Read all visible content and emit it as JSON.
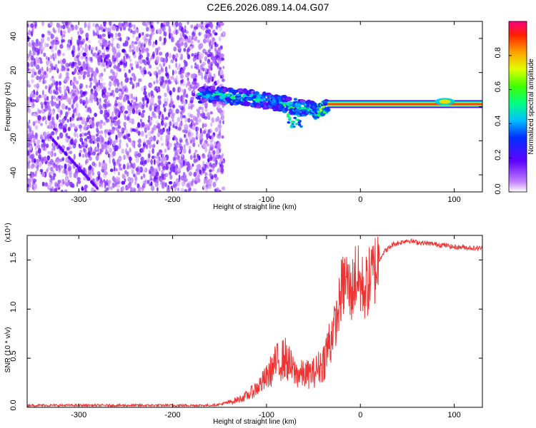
{
  "title": "C2E6.2026.089.14.04.G07",
  "chart_data": [
    {
      "type": "heatmap",
      "title": "C2E6.2026.089.14.04.G07",
      "xlabel": "Height of straight line (km)",
      "ylabel": "Frequency (Hz)",
      "xlim": [
        -355,
        130
      ],
      "ylim": [
        -50,
        50
      ],
      "xticks": [
        -300,
        -200,
        -100,
        0,
        100
      ],
      "xtick_labels": [
        "-300",
        "-200",
        "-100",
        "0",
        "100"
      ],
      "yticks": [
        -40,
        -20,
        0,
        20,
        40
      ],
      "ytick_labels": [
        "-40",
        "-20",
        "0",
        "20",
        "40"
      ],
      "colorbar": {
        "label": "Normalized spectral amplitude",
        "range": [
          0,
          1
        ],
        "ticks": [
          0.0,
          0.2,
          0.4,
          0.6,
          0.8
        ],
        "tick_labels": [
          "0.0",
          "0.2",
          "0.4",
          "0.6",
          "0.8"
        ],
        "colormap": "rainbow"
      },
      "noise_region_x": [
        -355,
        -150
      ],
      "ridge": [
        {
          "x": -165,
          "y": 7,
          "amp": 0.45
        },
        {
          "x": -140,
          "y": 6.5,
          "amp": 0.55
        },
        {
          "x": -120,
          "y": 5,
          "amp": 0.5
        },
        {
          "x": -100,
          "y": 3.5,
          "amp": 0.45
        },
        {
          "x": -85,
          "y": 2,
          "amp": 0.5
        },
        {
          "x": -70,
          "y": 0,
          "amp": 0.55
        },
        {
          "x": -55,
          "y": -1.5,
          "amp": 0.5
        },
        {
          "x": -45,
          "y": -2.5,
          "amp": 0.6
        },
        {
          "x": -35,
          "y": 0,
          "amp": 0.7
        },
        {
          "x": -25,
          "y": 1.5,
          "amp": 0.85
        },
        {
          "x": 0,
          "y": 1.5,
          "amp": 0.9
        },
        {
          "x": 60,
          "y": 1.5,
          "amp": 0.95
        },
        {
          "x": 130,
          "y": 1.5,
          "amp": 0.95
        }
      ]
    },
    {
      "type": "line",
      "xlabel": "Height of straight line (km)",
      "ylabel": "SNR (10 * v/v)",
      "y_multiplier": "(x10⁴)",
      "xlim": [
        -355,
        130
      ],
      "ylim": [
        0,
        1.75
      ],
      "xticks": [
        -300,
        -200,
        -100,
        0,
        100
      ],
      "xtick_labels": [
        "-300",
        "-200",
        "-100",
        "0",
        "100"
      ],
      "yticks": [
        0.0,
        0.5,
        1.0,
        1.5
      ],
      "ytick_labels": [
        "0.0",
        "0.5",
        "1.0",
        "1.5"
      ],
      "color": "#ee3333",
      "series": [
        {
          "name": "SNR",
          "x": [
            -355,
            -300,
            -250,
            -200,
            -160,
            -150,
            -140,
            -130,
            -120,
            -110,
            -100,
            -90,
            -80,
            -70,
            -60,
            -50,
            -40,
            -30,
            -25,
            -20,
            -15,
            -10,
            -5,
            0,
            5,
            10,
            15,
            20,
            25,
            30,
            35,
            40,
            50,
            60,
            70,
            80,
            90,
            100,
            110,
            120,
            130
          ],
          "y": [
            0.02,
            0.02,
            0.02,
            0.02,
            0.02,
            0.03,
            0.05,
            0.08,
            0.12,
            0.2,
            0.3,
            0.45,
            0.5,
            0.35,
            0.33,
            0.35,
            0.45,
            0.75,
            0.9,
            1.2,
            1.3,
            1.15,
            1.35,
            1.25,
            1.2,
            1.3,
            1.4,
            1.5,
            1.58,
            1.62,
            1.66,
            1.67,
            1.7,
            1.68,
            1.67,
            1.66,
            1.65,
            1.63,
            1.63,
            1.62,
            1.62
          ]
        }
      ]
    }
  ]
}
